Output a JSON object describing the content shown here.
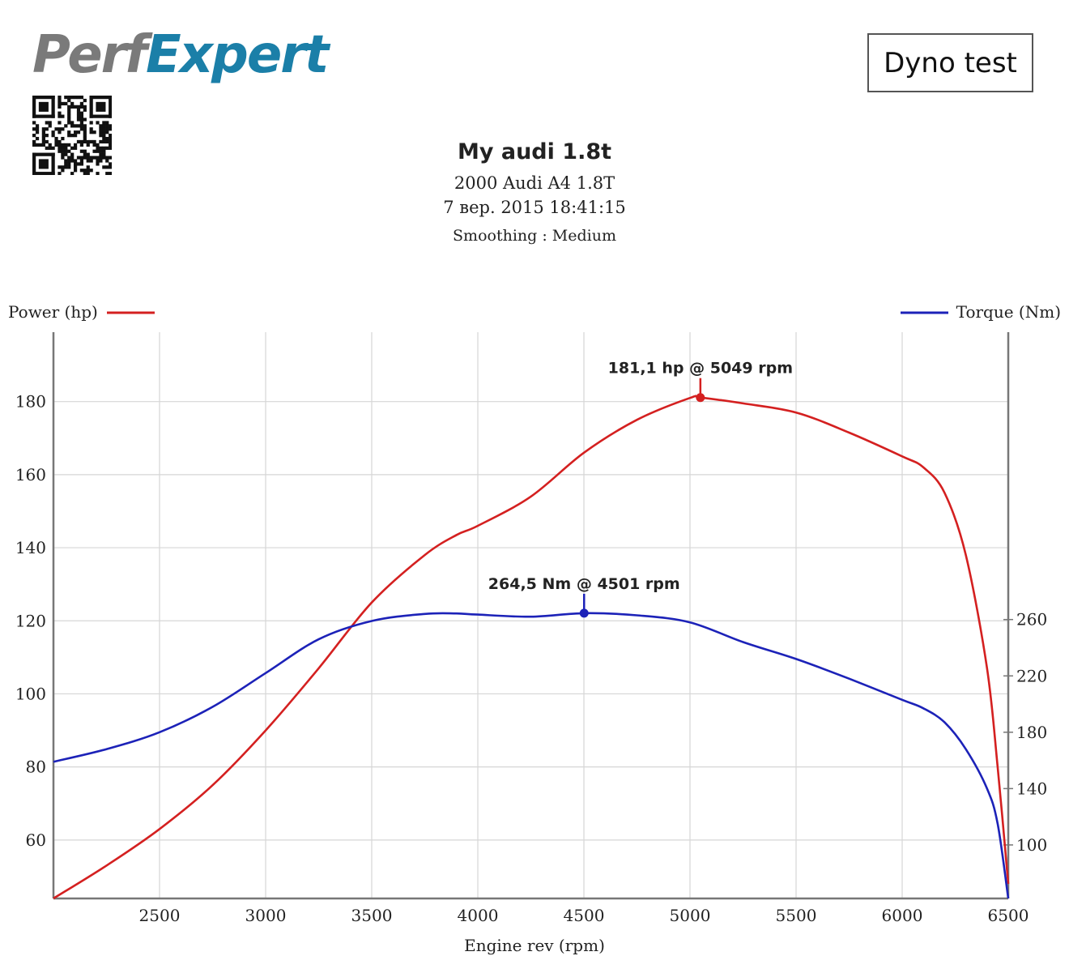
{
  "header": {
    "logo_part1": "Perf",
    "logo_part2": "Expert",
    "badge": "Dyno test"
  },
  "report": {
    "title": "My audi 1.8t",
    "vehicle": "2000 Audi A4 1.8T",
    "datetime": "7 вер. 2015 18:41:15",
    "smoothing": "Smoothing : Medium"
  },
  "colors": {
    "power": "#d42020",
    "torque": "#1c22b8",
    "grid": "#d6d6d6",
    "axis": "#777777"
  },
  "chart_data": {
    "type": "line",
    "xlabel": "Engine rev (rpm)",
    "xlim": [
      2000,
      6500
    ],
    "x_ticks": [
      2500,
      3000,
      3500,
      4000,
      4500,
      5000,
      5500,
      6000,
      6500
    ],
    "grid": true,
    "left_axis": {
      "label": "Power (hp)",
      "ylim": [
        44,
        199
      ],
      "ticks": [
        60,
        80,
        100,
        120,
        140,
        160,
        180
      ]
    },
    "right_axis": {
      "label": "Torque (Nm)",
      "ylim": [
        62,
        464
      ],
      "ticks": [
        100,
        140,
        180,
        220,
        260
      ]
    },
    "series": [
      {
        "name": "Power (hp)",
        "axis": "left",
        "color": "#d42020",
        "x": [
          2000,
          2250,
          2500,
          2750,
          3000,
          3250,
          3500,
          3750,
          3900,
          4000,
          4250,
          4500,
          4750,
          5000,
          5049,
          5250,
          5500,
          5750,
          6000,
          6100,
          6200,
          6300,
          6400,
          6450,
          6500
        ],
        "y": [
          44,
          53,
          63,
          75,
          90,
          107,
          125,
          138,
          143.5,
          146,
          154,
          166,
          175,
          181,
          181.1,
          179.5,
          177,
          171.5,
          165,
          162,
          155,
          138,
          107,
          80,
          48
        ]
      },
      {
        "name": "Torque (Nm)",
        "axis": "right",
        "color": "#1c22b8",
        "x": [
          2000,
          2250,
          2500,
          2750,
          3000,
          3250,
          3500,
          3750,
          3900,
          4000,
          4250,
          4501,
          4750,
          5000,
          5250,
          5500,
          5750,
          6000,
          6100,
          6200,
          6300,
          6400,
          6450,
          6500
        ],
        "y": [
          159,
          168,
          180,
          198,
          222,
          246,
          259,
          264,
          264.3,
          263.5,
          262,
          264.5,
          263,
          258,
          244,
          232,
          218,
          203,
          197,
          187,
          168,
          140,
          115,
          62
        ]
      }
    ],
    "annotations": [
      {
        "series": "Power (hp)",
        "x": 5049,
        "y": 181.1,
        "text": "181,1 hp @ 5049 rpm"
      },
      {
        "series": "Torque (Nm)",
        "x": 4501,
        "y": 264.5,
        "text": "264,5 Nm @ 4501 rpm"
      }
    ],
    "legend_placement": "top"
  }
}
